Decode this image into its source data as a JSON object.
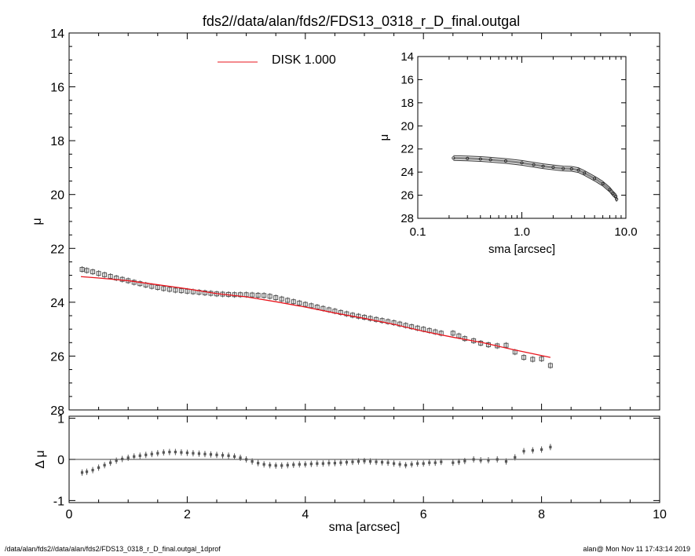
{
  "title": "fds2//data/alan/fds2/FDS13_0318_r_D_final.outgal",
  "footer_left": "/data/alan/fds2//data/alan/fds2/FDS13_0318_r_D_final.outgal_1dprof",
  "footer_right": "alan@  Mon Nov 11 17:43:14 2019",
  "colors": {
    "model": "#e8141c",
    "data": "#555555",
    "axis": "#000000"
  },
  "chart_data": [
    {
      "name": "main_profile",
      "type": "scatter",
      "ylabel": "μ",
      "xlim": [
        0,
        10
      ],
      "ylim": [
        28,
        14
      ],
      "y_inverted": true,
      "x_ticks": [
        0,
        2,
        4,
        6,
        8,
        10
      ],
      "y_ticks": [
        14,
        16,
        18,
        20,
        22,
        24,
        26,
        28
      ],
      "legend": {
        "label": "DISK  1.000",
        "placement": "top-center"
      },
      "series": [
        {
          "name": "DISK  1.000",
          "kind": "line",
          "x": [
            0.2,
            0.5,
            1.0,
            1.5,
            2.0,
            2.5,
            3.0,
            3.5,
            4.0,
            4.5,
            5.0,
            5.5,
            6.0,
            6.5,
            7.0,
            7.5,
            8.0,
            8.15
          ],
          "y": [
            23.05,
            23.1,
            23.2,
            23.35,
            23.5,
            23.68,
            23.8,
            23.98,
            24.18,
            24.4,
            24.6,
            24.82,
            25.08,
            25.3,
            25.5,
            25.75,
            25.98,
            26.05
          ]
        },
        {
          "kind": "points",
          "x": [
            0.22,
            0.3,
            0.4,
            0.5,
            0.6,
            0.7,
            0.8,
            0.9,
            1.0,
            1.1,
            1.2,
            1.3,
            1.4,
            1.5,
            1.6,
            1.7,
            1.8,
            1.9,
            2.0,
            2.1,
            2.2,
            2.3,
            2.4,
            2.5,
            2.6,
            2.7,
            2.8,
            2.9,
            3.0,
            3.1,
            3.2,
            3.3,
            3.4,
            3.5,
            3.6,
            3.7,
            3.8,
            3.9,
            4.0,
            4.1,
            4.2,
            4.3,
            4.4,
            4.5,
            4.6,
            4.7,
            4.8,
            4.9,
            5.0,
            5.1,
            5.2,
            5.3,
            5.4,
            5.5,
            5.6,
            5.7,
            5.8,
            5.9,
            6.0,
            6.1,
            6.2,
            6.3,
            6.5,
            6.6,
            6.7,
            6.85,
            6.97,
            7.1,
            7.25,
            7.4,
            7.55,
            7.7,
            7.85,
            8.0,
            8.15
          ],
          "y": [
            22.78,
            22.82,
            22.87,
            22.93,
            22.98,
            23.04,
            23.1,
            23.15,
            23.2,
            23.26,
            23.31,
            23.36,
            23.41,
            23.45,
            23.49,
            23.52,
            23.55,
            23.57,
            23.59,
            23.61,
            23.63,
            23.65,
            23.67,
            23.69,
            23.7,
            23.71,
            23.72,
            23.72,
            23.72,
            23.73,
            23.74,
            23.75,
            23.78,
            23.83,
            23.88,
            23.93,
            23.98,
            24.03,
            24.08,
            24.13,
            24.18,
            24.23,
            24.28,
            24.33,
            24.38,
            24.43,
            24.48,
            24.52,
            24.56,
            24.6,
            24.64,
            24.68,
            24.72,
            24.76,
            24.81,
            24.86,
            24.91,
            24.96,
            25.0,
            25.05,
            25.1,
            25.15,
            25.15,
            25.25,
            25.35,
            25.43,
            25.52,
            25.58,
            25.62,
            25.6,
            25.85,
            26.05,
            26.12,
            26.1,
            26.35
          ]
        }
      ]
    },
    {
      "name": "residuals",
      "type": "scatter",
      "xlabel": "sma [arcsec]",
      "ylabel": "Δ μ",
      "xlim": [
        0,
        10
      ],
      "ylim": [
        -1.05,
        1.05
      ],
      "x_ticks": [
        0,
        2,
        4,
        6,
        8,
        10
      ],
      "y_ticks": [
        -1,
        0,
        1
      ],
      "zero_line": true,
      "series": [
        {
          "kind": "points",
          "x": [
            0.22,
            0.3,
            0.4,
            0.5,
            0.6,
            0.7,
            0.8,
            0.9,
            1.0,
            1.1,
            1.2,
            1.3,
            1.4,
            1.5,
            1.6,
            1.7,
            1.8,
            1.9,
            2.0,
            2.1,
            2.2,
            2.3,
            2.4,
            2.5,
            2.6,
            2.7,
            2.8,
            2.9,
            3.0,
            3.1,
            3.2,
            3.3,
            3.4,
            3.5,
            3.6,
            3.7,
            3.8,
            3.9,
            4.0,
            4.1,
            4.2,
            4.3,
            4.4,
            4.5,
            4.6,
            4.7,
            4.8,
            4.9,
            5.0,
            5.1,
            5.2,
            5.3,
            5.4,
            5.5,
            5.6,
            5.7,
            5.8,
            5.9,
            6.0,
            6.1,
            6.2,
            6.3,
            6.5,
            6.6,
            6.7,
            6.85,
            6.97,
            7.1,
            7.25,
            7.4,
            7.55,
            7.7,
            7.85,
            8.0,
            8.15
          ],
          "y": [
            -0.32,
            -0.3,
            -0.26,
            -0.2,
            -0.14,
            -0.08,
            -0.03,
            0.01,
            0.04,
            0.07,
            0.09,
            0.11,
            0.13,
            0.15,
            0.17,
            0.18,
            0.18,
            0.17,
            0.16,
            0.15,
            0.14,
            0.13,
            0.12,
            0.11,
            0.1,
            0.09,
            0.07,
            0.04,
            0.0,
            -0.05,
            -0.09,
            -0.12,
            -0.14,
            -0.15,
            -0.15,
            -0.14,
            -0.13,
            -0.12,
            -0.12,
            -0.11,
            -0.1,
            -0.1,
            -0.09,
            -0.09,
            -0.08,
            -0.07,
            -0.06,
            -0.05,
            -0.04,
            -0.05,
            -0.06,
            -0.07,
            -0.08,
            -0.1,
            -0.12,
            -0.14,
            -0.12,
            -0.1,
            -0.1,
            -0.08,
            -0.08,
            -0.06,
            -0.08,
            -0.06,
            -0.04,
            0.0,
            -0.02,
            -0.02,
            0.0,
            -0.05,
            0.05,
            0.2,
            0.22,
            0.24,
            0.3
          ]
        }
      ]
    },
    {
      "name": "inset_log_profile",
      "type": "line",
      "xlabel": "sma [arcsec]",
      "ylabel": "μ",
      "x_scale": "log",
      "xlim": [
        0.1,
        10.0
      ],
      "ylim": [
        28,
        14
      ],
      "y_inverted": true,
      "x_ticks": [
        0.1,
        1.0,
        10.0
      ],
      "x_tick_labels": [
        "0.1",
        "1.0",
        "10.0"
      ],
      "y_ticks": [
        14,
        16,
        18,
        20,
        22,
        24,
        26,
        28
      ],
      "series": [
        {
          "kind": "band",
          "x": [
            0.22,
            0.3,
            0.4,
            0.5,
            0.7,
            1.0,
            1.3,
            1.6,
            2.0,
            2.5,
            3.0,
            3.5,
            4.0,
            5.0,
            6.0,
            7.0,
            7.5,
            8.0,
            8.15
          ],
          "y": [
            22.78,
            22.82,
            22.87,
            22.93,
            23.04,
            23.2,
            23.36,
            23.49,
            23.59,
            23.69,
            23.72,
            23.83,
            24.08,
            24.56,
            25.0,
            25.52,
            25.85,
            26.1,
            26.35
          ]
        }
      ]
    }
  ]
}
